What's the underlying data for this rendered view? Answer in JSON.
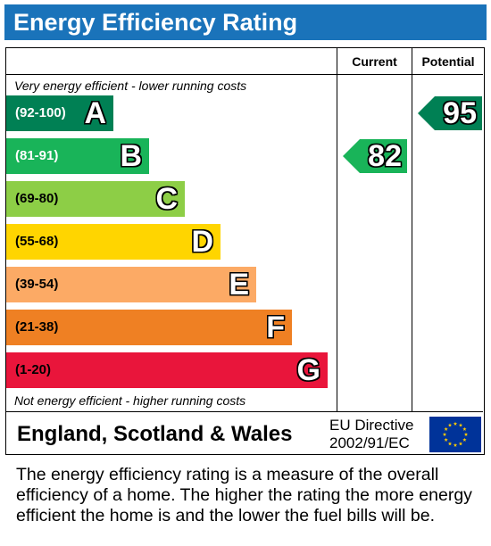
{
  "title": "Energy Efficiency Rating",
  "columns": {
    "current": "Current",
    "potential": "Potential"
  },
  "notes": {
    "top": "Very energy efficient - lower running costs",
    "bottom": "Not energy efficient - higher running costs"
  },
  "chart_data": {
    "type": "bar",
    "categories": [
      "A",
      "B",
      "C",
      "D",
      "E",
      "F",
      "G"
    ],
    "bands": [
      {
        "letter": "A",
        "range": "(92-100)",
        "color": "#008054",
        "text_color": "#ffffff"
      },
      {
        "letter": "B",
        "range": "(81-91)",
        "color": "#19b459",
        "text_color": "#ffffff"
      },
      {
        "letter": "C",
        "range": "(69-80)",
        "color": "#8dce46",
        "text_color": "#000000"
      },
      {
        "letter": "D",
        "range": "(55-68)",
        "color": "#ffd500",
        "text_color": "#000000"
      },
      {
        "letter": "E",
        "range": "(39-54)",
        "color": "#fcaa65",
        "text_color": "#000000"
      },
      {
        "letter": "F",
        "range": "(21-38)",
        "color": "#ef8023",
        "text_color": "#000000"
      },
      {
        "letter": "G",
        "range": "(1-20)",
        "color": "#e9153b",
        "text_color": "#000000"
      }
    ],
    "current": {
      "value": "82",
      "band": "B",
      "color": "#19b459"
    },
    "potential": {
      "value": "95",
      "band": "A",
      "color": "#008054"
    }
  },
  "footer": {
    "region": "England, Scotland & Wales",
    "directive_line1": "EU Directive",
    "directive_line2": "2002/91/EC",
    "flag_icon": "eu-flag-icon",
    "flag_colors": {
      "background": "#003399",
      "stars": "#ffcc00"
    }
  },
  "description": "The energy efficiency rating is a measure of the overall efficiency of a home. The higher the rating the more energy efficient the home is and the lower the fuel bills will be."
}
